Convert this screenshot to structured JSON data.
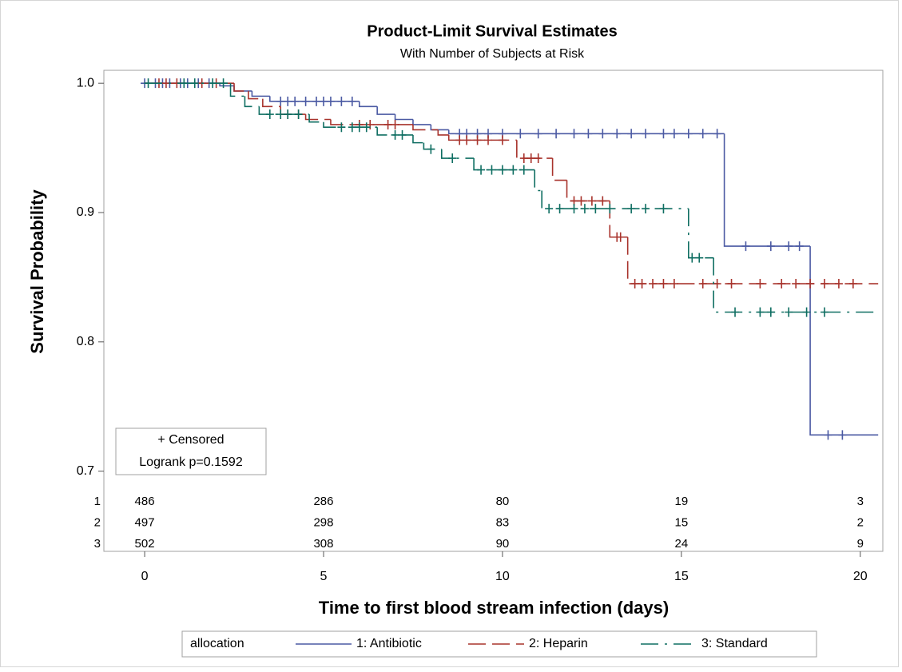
{
  "chart_data": {
    "type": "survival",
    "title": "Product-Limit Survival Estimates",
    "subtitle": "With Number of Subjects at Risk",
    "x_label": "Time to first blood stream infection (days)",
    "y_label": "Survival Probability",
    "xlim": [
      -1.14,
      20.63
    ],
    "xticks": [
      0,
      5,
      10,
      15,
      20
    ],
    "ylim": [
      0.638,
      1.01
    ],
    "yticks": [
      {
        "value": 1,
        "label": "1.0"
      },
      0.9,
      0.8,
      0.7
    ],
    "inset": [
      "+ Censored",
      "Logrank p=0.1592"
    ],
    "legend": "bottom",
    "legend_title": "allocation",
    "series": [
      {
        "name": "1: Antibiotic",
        "color": "#4b5aa3",
        "line_style": "solid",
        "x": [
          0,
          2.1,
          2.5,
          3.0,
          3.5,
          6.0,
          6.5,
          7.0,
          7.5,
          8.0,
          8.5,
          16.2,
          18.6
        ],
        "values": [
          1,
          0.998,
          0.994,
          0.99,
          0.986,
          0.982,
          0.976,
          0.972,
          0.968,
          0.964,
          0.961,
          0.874,
          0.728
        ],
        "censored": [
          0,
          0.3,
          0.5,
          0.7,
          1.0,
          1.2,
          1.5,
          1.8,
          3.8,
          4.0,
          4.2,
          4.5,
          4.8,
          5.0,
          5.2,
          5.5,
          5.8,
          8.8,
          9.0,
          9.3,
          9.6,
          10.0,
          10.5,
          11.0,
          11.5,
          12.0,
          12.4,
          12.8,
          13.2,
          13.6,
          14.0,
          14.5,
          14.8,
          15.2,
          15.6,
          16.0,
          16.8,
          17.5,
          18.0,
          18.3,
          19.1,
          19.5
        ]
      },
      {
        "name": "2: Heparin",
        "color": "#a8332c",
        "line_style": "dashed",
        "x": [
          0,
          2.5,
          2.9,
          3.3,
          3.8,
          4.5,
          5.2,
          7.5,
          8.2,
          8.5,
          10.4,
          11.4,
          11.8,
          13.0,
          13.5
        ],
        "values": [
          1,
          0.994,
          0.988,
          0.982,
          0.976,
          0.972,
          0.968,
          0.964,
          0.96,
          0.956,
          0.942,
          0.925,
          0.909,
          0.881,
          0.845
        ],
        "censored": [
          0.4,
          0.6,
          0.9,
          1.6,
          2.0,
          4.0,
          4.3,
          6.0,
          6.3,
          6.8,
          7.0,
          8.8,
          9.0,
          9.3,
          9.6,
          10.0,
          10.6,
          10.8,
          11.0,
          12.0,
          12.2,
          12.5,
          12.8,
          13.2,
          13.3,
          13.7,
          13.9,
          14.2,
          14.5,
          14.8,
          15.6,
          16.0,
          16.4,
          17.2,
          17.8,
          18.2,
          18.6,
          19.0,
          19.4,
          19.8
        ]
      },
      {
        "name": "3: Standard",
        "color": "#0f6e62",
        "line_style": "dashdot",
        "x": [
          0,
          2.4,
          2.8,
          3.2,
          4.6,
          5.0,
          6.5,
          7.5,
          7.8,
          8.3,
          9.2,
          10.9,
          11.1,
          15.2,
          15.9
        ],
        "values": [
          1,
          0.99,
          0.982,
          0.976,
          0.97,
          0.966,
          0.96,
          0.954,
          0.949,
          0.942,
          0.933,
          0.917,
          0.903,
          0.865,
          0.823
        ],
        "censored": [
          0.1,
          1.1,
          1.4,
          1.9,
          2.2,
          3.5,
          3.8,
          4.0,
          4.3,
          5.5,
          5.8,
          6.0,
          6.2,
          7.0,
          7.2,
          8.0,
          8.6,
          9.4,
          9.7,
          10.0,
          10.3,
          10.6,
          11.3,
          11.6,
          12.0,
          12.3,
          12.6,
          13.0,
          13.6,
          14.0,
          14.5,
          15.3,
          15.5,
          16.5,
          17.2,
          17.5,
          18.0,
          18.5,
          19.0
        ]
      }
    ],
    "at_risk": {
      "times": [
        0,
        5,
        10,
        15,
        20
      ],
      "rows": [
        {
          "label": "1",
          "counts": [
            486,
            286,
            80,
            19,
            3
          ]
        },
        {
          "label": "2",
          "counts": [
            497,
            298,
            83,
            15,
            2
          ]
        },
        {
          "label": "3",
          "counts": [
            502,
            308,
            90,
            24,
            9
          ]
        }
      ]
    }
  }
}
